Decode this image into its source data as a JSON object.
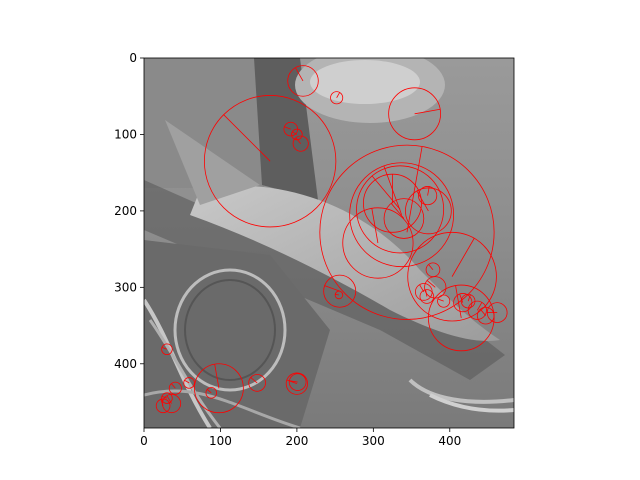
{
  "chart_data": {
    "type": "scatter",
    "title": "",
    "xlabel": "",
    "ylabel": "",
    "xlim": [
      0,
      484
    ],
    "ylim": [
      484,
      0
    ],
    "y_inverted": true,
    "grid": false,
    "legend": "none",
    "background": "grayscale photograph (trout in water with rock and debris)",
    "marker_color": "#ff0000",
    "xticks": [
      0,
      100,
      200,
      300,
      400
    ],
    "yticks": [
      0,
      100,
      200,
      300,
      400
    ],
    "xtick_labels": [
      "0",
      "100",
      "200",
      "300",
      "400"
    ],
    "ytick_labels": [
      "0",
      "100",
      "200",
      "300",
      "400"
    ],
    "features": [
      {
        "x": 165,
        "y": 135,
        "r": 86,
        "angle": 225
      },
      {
        "x": 208,
        "y": 30,
        "r": 20,
        "angle": 240
      },
      {
        "x": 252,
        "y": 52,
        "r": 8,
        "angle": 300
      },
      {
        "x": 344,
        "y": 228,
        "r": 114,
        "angle": 280
      },
      {
        "x": 337,
        "y": 205,
        "r": 68,
        "angle": 250
      },
      {
        "x": 335,
        "y": 198,
        "r": 57,
        "angle": 230
      },
      {
        "x": 306,
        "y": 242,
        "r": 46,
        "angle": 260
      },
      {
        "x": 325,
        "y": 190,
        "r": 38,
        "angle": 270
      },
      {
        "x": 340,
        "y": 210,
        "r": 26,
        "angle": 230
      },
      {
        "x": 372,
        "y": 200,
        "r": 30,
        "angle": 240
      },
      {
        "x": 371,
        "y": 180,
        "r": 12,
        "angle": 280
      },
      {
        "x": 354,
        "y": 73,
        "r": 34,
        "angle": 350
      },
      {
        "x": 192,
        "y": 93,
        "r": 9,
        "angle": 200
      },
      {
        "x": 200,
        "y": 100,
        "r": 7,
        "angle": 210
      },
      {
        "x": 205,
        "y": 112,
        "r": 10,
        "angle": 230
      },
      {
        "x": 256,
        "y": 305,
        "r": 21,
        "angle": 200
      },
      {
        "x": 255,
        "y": 310,
        "r": 5,
        "angle": 190
      },
      {
        "x": 403,
        "y": 286,
        "r": 58,
        "angle": 300
      },
      {
        "x": 415,
        "y": 340,
        "r": 43,
        "angle": 260
      },
      {
        "x": 378,
        "y": 277,
        "r": 9,
        "angle": 230
      },
      {
        "x": 381,
        "y": 300,
        "r": 14,
        "angle": 220
      },
      {
        "x": 366,
        "y": 306,
        "r": 11,
        "angle": 240
      },
      {
        "x": 370,
        "y": 312,
        "r": 9,
        "angle": 260
      },
      {
        "x": 392,
        "y": 318,
        "r": 8,
        "angle": 200
      },
      {
        "x": 417,
        "y": 320,
        "r": 12,
        "angle": 250
      },
      {
        "x": 424,
        "y": 318,
        "r": 9,
        "angle": 290
      },
      {
        "x": 436,
        "y": 330,
        "r": 12,
        "angle": 300
      },
      {
        "x": 447,
        "y": 337,
        "r": 11,
        "angle": 230
      },
      {
        "x": 462,
        "y": 333,
        "r": 13,
        "angle": 180
      },
      {
        "x": 30,
        "y": 381,
        "r": 7,
        "angle": 200
      },
      {
        "x": 98,
        "y": 432,
        "r": 32,
        "angle": 260
      },
      {
        "x": 148,
        "y": 425,
        "r": 11,
        "angle": 220
      },
      {
        "x": 200,
        "y": 426,
        "r": 14,
        "angle": 200
      },
      {
        "x": 201,
        "y": 424,
        "r": 11,
        "angle": 190
      },
      {
        "x": 59,
        "y": 425,
        "r": 7,
        "angle": 210
      },
      {
        "x": 41,
        "y": 432,
        "r": 8,
        "angle": 230
      },
      {
        "x": 88,
        "y": 438,
        "r": 7,
        "angle": 220
      },
      {
        "x": 36,
        "y": 452,
        "r": 12,
        "angle": 240
      },
      {
        "x": 25,
        "y": 455,
        "r": 9,
        "angle": 250
      },
      {
        "x": 30,
        "y": 445,
        "r": 7,
        "angle": 200
      }
    ]
  }
}
